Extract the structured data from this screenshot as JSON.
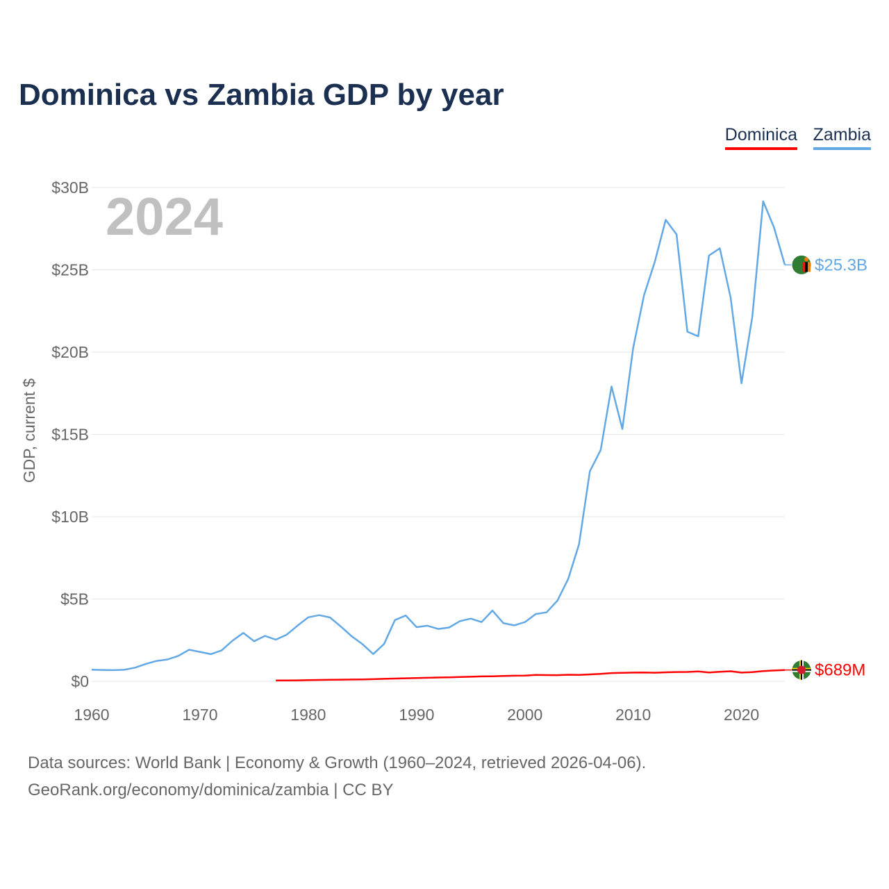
{
  "chart_data": {
    "type": "line",
    "title": "Dominica vs Zambia GDP by year",
    "ylabel": "GDP, current $",
    "xlabel": "",
    "year_label": "2024",
    "ylim": [
      0,
      30000000000
    ],
    "xlim": [
      1960,
      2024
    ],
    "y_ticks": [
      {
        "value": 0,
        "label": "$0"
      },
      {
        "value": 5000000000,
        "label": "$5B"
      },
      {
        "value": 10000000000,
        "label": "$10B"
      },
      {
        "value": 15000000000,
        "label": "$15B"
      },
      {
        "value": 20000000000,
        "label": "$20B"
      },
      {
        "value": 25000000000,
        "label": "$25B"
      },
      {
        "value": 30000000000,
        "label": "$30B"
      }
    ],
    "x_ticks": [
      {
        "value": 1960,
        "label": "1960"
      },
      {
        "value": 1970,
        "label": "1970"
      },
      {
        "value": 1980,
        "label": "1980"
      },
      {
        "value": 1990,
        "label": "1990"
      },
      {
        "value": 2000,
        "label": "2000"
      },
      {
        "value": 2010,
        "label": "2010"
      },
      {
        "value": 2020,
        "label": "2020"
      }
    ],
    "legend_position": "top-right",
    "series": [
      {
        "name": "Dominica",
        "color": "#ff0000",
        "end_label": "$689M",
        "flag_icon": "dominica-flag-icon",
        "x": [
          1977,
          1978,
          1979,
          1980,
          1981,
          1982,
          1983,
          1984,
          1985,
          1986,
          1987,
          1988,
          1989,
          1990,
          1991,
          1992,
          1993,
          1994,
          1995,
          1996,
          1997,
          1998,
          1999,
          2000,
          2001,
          2002,
          2003,
          2004,
          2005,
          2006,
          2007,
          2008,
          2009,
          2010,
          2011,
          2012,
          2013,
          2014,
          2015,
          2016,
          2017,
          2018,
          2019,
          2020,
          2021,
          2022,
          2023,
          2024
        ],
        "values": [
          50000000,
          55000000,
          60000000,
          75000000,
          85000000,
          95000000,
          100000000,
          110000000,
          120000000,
          130000000,
          150000000,
          170000000,
          185000000,
          200000000,
          215000000,
          230000000,
          245000000,
          260000000,
          280000000,
          300000000,
          310000000,
          330000000,
          340000000,
          345000000,
          390000000,
          380000000,
          375000000,
          400000000,
          390000000,
          420000000,
          455000000,
          500000000,
          520000000,
          530000000,
          540000000,
          525000000,
          550000000,
          565000000,
          570000000,
          600000000,
          540000000,
          580000000,
          610000000,
          530000000,
          560000000,
          620000000,
          660000000,
          689000000
        ]
      },
      {
        "name": "Zambia",
        "color": "#62a8e5",
        "end_label": "$25.3B",
        "flag_icon": "zambia-flag-icon",
        "x": [
          1960,
          1961,
          1962,
          1963,
          1964,
          1965,
          1966,
          1967,
          1968,
          1969,
          1970,
          1971,
          1972,
          1973,
          1974,
          1975,
          1976,
          1977,
          1978,
          1979,
          1980,
          1981,
          1982,
          1983,
          1984,
          1985,
          1986,
          1987,
          1988,
          1989,
          1990,
          1991,
          1992,
          1993,
          1994,
          1995,
          1996,
          1997,
          1998,
          1999,
          2000,
          2001,
          2002,
          2003,
          2004,
          2005,
          2006,
          2007,
          2008,
          2009,
          2010,
          2011,
          2012,
          2013,
          2014,
          2015,
          2016,
          2017,
          2018,
          2019,
          2020,
          2021,
          2022,
          2023,
          2024
        ],
        "values": [
          710000000,
          690000000,
          680000000,
          700000000,
          830000000,
          1060000000,
          1240000000,
          1330000000,
          1550000000,
          1920000000,
          1790000000,
          1650000000,
          1880000000,
          2470000000,
          2940000000,
          2440000000,
          2760000000,
          2530000000,
          2830000000,
          3380000000,
          3890000000,
          4020000000,
          3880000000,
          3330000000,
          2740000000,
          2260000000,
          1660000000,
          2270000000,
          3720000000,
          4000000000,
          3290000000,
          3380000000,
          3180000000,
          3270000000,
          3660000000,
          3810000000,
          3600000000,
          4300000000,
          3540000000,
          3400000000,
          3600000000,
          4090000000,
          4190000000,
          4900000000,
          6220000000,
          8330000000,
          12760000000,
          14060000000,
          17910000000,
          15330000000,
          20270000000,
          23460000000,
          25500000000,
          28040000000,
          27150000000,
          21240000000,
          20960000000,
          25870000000,
          26310000000,
          23310000000,
          18110000000,
          22150000000,
          29160000000,
          27580000000,
          25300000000
        ]
      }
    ]
  },
  "footer": {
    "line1": "Data sources: World Bank | Economy & Growth (1960–2024, retrieved 2026-04-06).",
    "line2": "GeoRank.org/economy/dominica/zambia | CC BY"
  }
}
